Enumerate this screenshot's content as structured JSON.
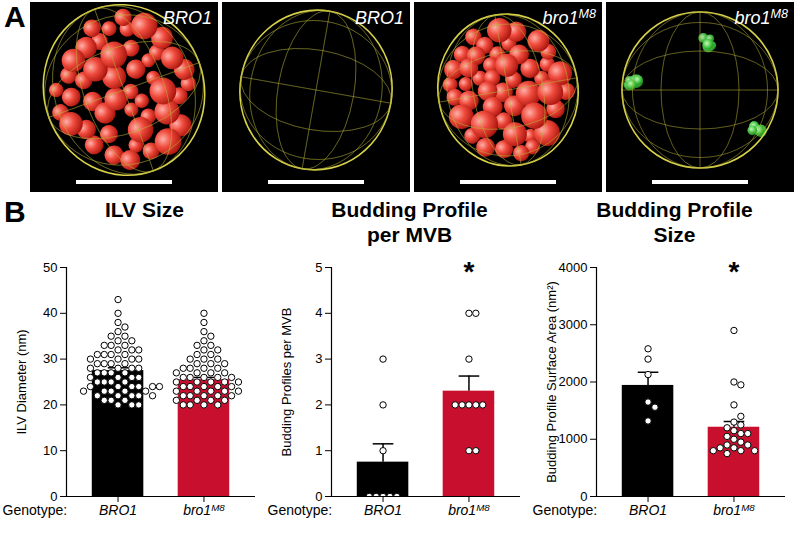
{
  "panel_a": {
    "label": "A",
    "images": [
      {
        "genotype": "BRO1",
        "superscript": null
      },
      {
        "genotype": "BRO1",
        "superscript": null
      },
      {
        "genotype": "bro1M8",
        "superscript": "M8"
      },
      {
        "genotype": "bro1M8",
        "superscript": "M8"
      }
    ]
  },
  "panel_b_label": "B",
  "chart_data": [
    {
      "type": "bar",
      "title": "ILV Size",
      "y_label": "ILV Diameter (nm)",
      "x_label": "Genotype:",
      "categories": [
        "BRO1",
        "bro1M8"
      ],
      "superscripts": [
        null,
        "M8"
      ],
      "colors": [
        "#000000",
        "#c8102e"
      ],
      "values": [
        27.5,
        25.5
      ],
      "errors": [
        0.6,
        0.5
      ],
      "points": [
        [
          43,
          40,
          38,
          37,
          36,
          35,
          35,
          34,
          34,
          33,
          33,
          33,
          32,
          32,
          32,
          31,
          31,
          31,
          31,
          30,
          30,
          30,
          30,
          29,
          29,
          29,
          29,
          28,
          28,
          28,
          28,
          27,
          27,
          27,
          27,
          26,
          26,
          26,
          26,
          25,
          25,
          25,
          25,
          24,
          24,
          24,
          24,
          23,
          23,
          23,
          22,
          22,
          22,
          21,
          20,
          22,
          22,
          21,
          21,
          20,
          20,
          23,
          23,
          24,
          24
        ],
        [
          40,
          38,
          36,
          35,
          34,
          33,
          33,
          32,
          32,
          31,
          31,
          30,
          30,
          30,
          29,
          29,
          29,
          28,
          28,
          28,
          28,
          27,
          27,
          27,
          27,
          26,
          26,
          26,
          26,
          26,
          25,
          25,
          25,
          25,
          25,
          24,
          24,
          24,
          24,
          24,
          23,
          23,
          23,
          23,
          23,
          22,
          22,
          22,
          22,
          22,
          21,
          21,
          21,
          21,
          20,
          20,
          20,
          20
        ]
      ],
      "ylim": [
        0,
        50
      ],
      "yticks": [
        0,
        10,
        20,
        30,
        40,
        50
      ],
      "annotations": []
    },
    {
      "type": "bar",
      "title": "Budding Profile per MVB",
      "y_label": "Budding Profiles per MVB",
      "x_label": "Genotype:",
      "categories": [
        "BRO1",
        "bro1M8"
      ],
      "superscripts": [
        null,
        "M8"
      ],
      "colors": [
        "#000000",
        "#c8102e"
      ],
      "values": [
        0.75,
        2.3
      ],
      "errors": [
        0.4,
        0.33
      ],
      "points": [
        [
          0,
          0,
          0,
          0,
          0,
          1,
          2,
          3
        ],
        [
          4,
          4,
          3,
          2,
          2,
          2,
          2,
          2,
          1,
          1
        ]
      ],
      "ylim": [
        0,
        5
      ],
      "yticks": [
        0,
        1,
        2,
        3,
        4,
        5
      ],
      "annotations": [
        {
          "text": "*",
          "category": "bro1M8"
        }
      ]
    },
    {
      "type": "bar",
      "title": "Budding Profile Size",
      "y_label": "Budding Profile Surface Area (nm²)",
      "x_label": "Genotype:",
      "categories": [
        "BRO1",
        "bro1M8"
      ],
      "superscripts": [
        null,
        "M8"
      ],
      "colors": [
        "#000000",
        "#c8102e"
      ],
      "values": [
        1940,
        1210
      ],
      "errors": [
        230,
        100
      ],
      "points": [
        [
          2580,
          2400,
          2130,
          1650,
          1560,
          1320
        ],
        [
          2900,
          2000,
          1950,
          1600,
          1300,
          1250,
          1200,
          1150,
          1100,
          1000,
          950,
          900,
          900,
          850,
          850,
          800,
          800,
          800,
          750,
          1400,
          1050,
          1100
        ]
      ],
      "ylim": [
        0,
        4000
      ],
      "yticks": [
        0,
        1000,
        2000,
        3000,
        4000
      ],
      "annotations": [
        {
          "text": "*",
          "category": "bro1M8"
        }
      ]
    }
  ]
}
